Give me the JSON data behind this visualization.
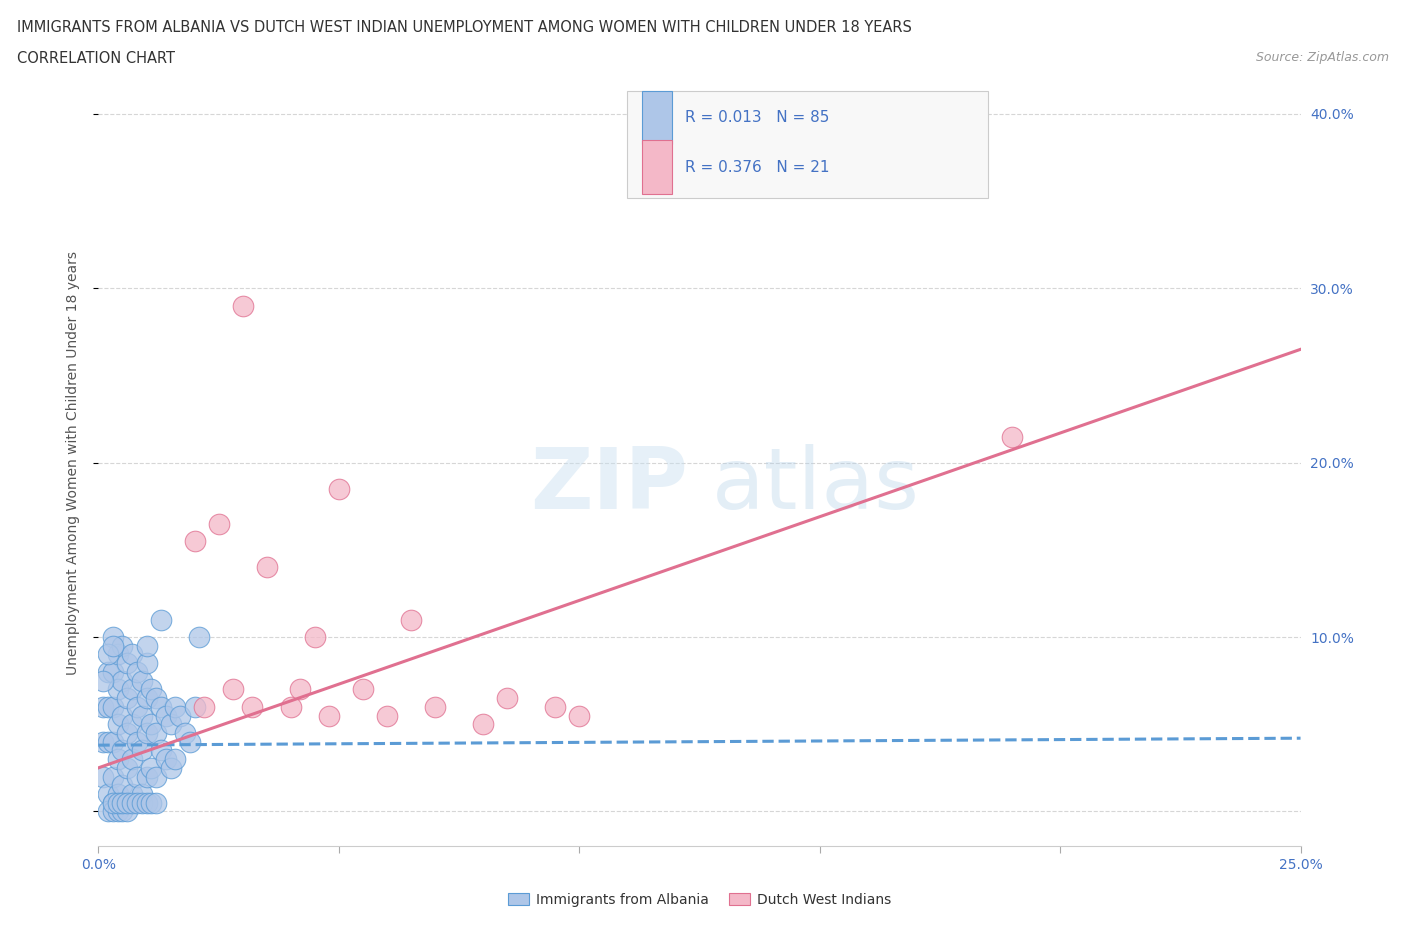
{
  "title_line1": "IMMIGRANTS FROM ALBANIA VS DUTCH WEST INDIAN UNEMPLOYMENT AMONG WOMEN WITH CHILDREN UNDER 18 YEARS",
  "title_line2": "CORRELATION CHART",
  "source_text": "Source: ZipAtlas.com",
  "ylabel": "Unemployment Among Women with Children Under 18 years",
  "xlim": [
    0.0,
    0.25
  ],
  "ylim": [
    -0.02,
    0.42
  ],
  "xticks": [
    0.0,
    0.05,
    0.1,
    0.15,
    0.2,
    0.25
  ],
  "yticks": [
    0.0,
    0.1,
    0.2,
    0.3,
    0.4
  ],
  "grid_color": "#cccccc",
  "background_color": "#ffffff",
  "blue_fill": "#aec6e8",
  "blue_edge": "#5b9bd5",
  "pink_fill": "#f4b8c8",
  "pink_edge": "#e07090",
  "blue_line": "#5b9bd5",
  "pink_line": "#e07090",
  "label1": "Immigrants from Albania",
  "label2": "Dutch West Indians",
  "text_color": "#4472c4",
  "scatter_blue_x": [
    0.001,
    0.001,
    0.001,
    0.002,
    0.002,
    0.002,
    0.002,
    0.003,
    0.003,
    0.003,
    0.003,
    0.003,
    0.003,
    0.004,
    0.004,
    0.004,
    0.004,
    0.004,
    0.005,
    0.005,
    0.005,
    0.005,
    0.005,
    0.005,
    0.006,
    0.006,
    0.006,
    0.006,
    0.006,
    0.007,
    0.007,
    0.007,
    0.007,
    0.007,
    0.008,
    0.008,
    0.008,
    0.008,
    0.009,
    0.009,
    0.009,
    0.009,
    0.01,
    0.01,
    0.01,
    0.01,
    0.011,
    0.011,
    0.011,
    0.012,
    0.012,
    0.012,
    0.013,
    0.013,
    0.014,
    0.014,
    0.015,
    0.015,
    0.016,
    0.016,
    0.017,
    0.018,
    0.019,
    0.02,
    0.021,
    0.002,
    0.003,
    0.004,
    0.005,
    0.006,
    0.003,
    0.004,
    0.005,
    0.006,
    0.007,
    0.008,
    0.009,
    0.01,
    0.011,
    0.012,
    0.001,
    0.002,
    0.003,
    0.01,
    0.013
  ],
  "scatter_blue_y": [
    0.06,
    0.04,
    0.02,
    0.08,
    0.06,
    0.04,
    0.01,
    0.1,
    0.08,
    0.06,
    0.04,
    0.02,
    0.005,
    0.09,
    0.07,
    0.05,
    0.03,
    0.01,
    0.095,
    0.075,
    0.055,
    0.035,
    0.015,
    0.005,
    0.085,
    0.065,
    0.045,
    0.025,
    0.005,
    0.09,
    0.07,
    0.05,
    0.03,
    0.01,
    0.08,
    0.06,
    0.04,
    0.02,
    0.075,
    0.055,
    0.035,
    0.01,
    0.085,
    0.065,
    0.045,
    0.02,
    0.07,
    0.05,
    0.025,
    0.065,
    0.045,
    0.02,
    0.06,
    0.035,
    0.055,
    0.03,
    0.05,
    0.025,
    0.06,
    0.03,
    0.055,
    0.045,
    0.04,
    0.06,
    0.1,
    0.0,
    0.0,
    0.0,
    0.0,
    0.0,
    0.005,
    0.005,
    0.005,
    0.005,
    0.005,
    0.005,
    0.005,
    0.005,
    0.005,
    0.005,
    0.075,
    0.09,
    0.095,
    0.095,
    0.11
  ],
  "scatter_pink_x": [
    0.02,
    0.022,
    0.025,
    0.028,
    0.03,
    0.032,
    0.035,
    0.04,
    0.042,
    0.045,
    0.048,
    0.05,
    0.055,
    0.06,
    0.065,
    0.07,
    0.08,
    0.085,
    0.095,
    0.1,
    0.19
  ],
  "scatter_pink_y": [
    0.155,
    0.06,
    0.165,
    0.07,
    0.29,
    0.06,
    0.14,
    0.06,
    0.07,
    0.1,
    0.055,
    0.185,
    0.07,
    0.055,
    0.11,
    0.06,
    0.05,
    0.065,
    0.06,
    0.055,
    0.215
  ],
  "blue_trend_x": [
    0.0,
    0.25
  ],
  "blue_trend_y": [
    0.038,
    0.042
  ],
  "pink_trend_x": [
    0.0,
    0.25
  ],
  "pink_trend_y": [
    0.025,
    0.265
  ]
}
